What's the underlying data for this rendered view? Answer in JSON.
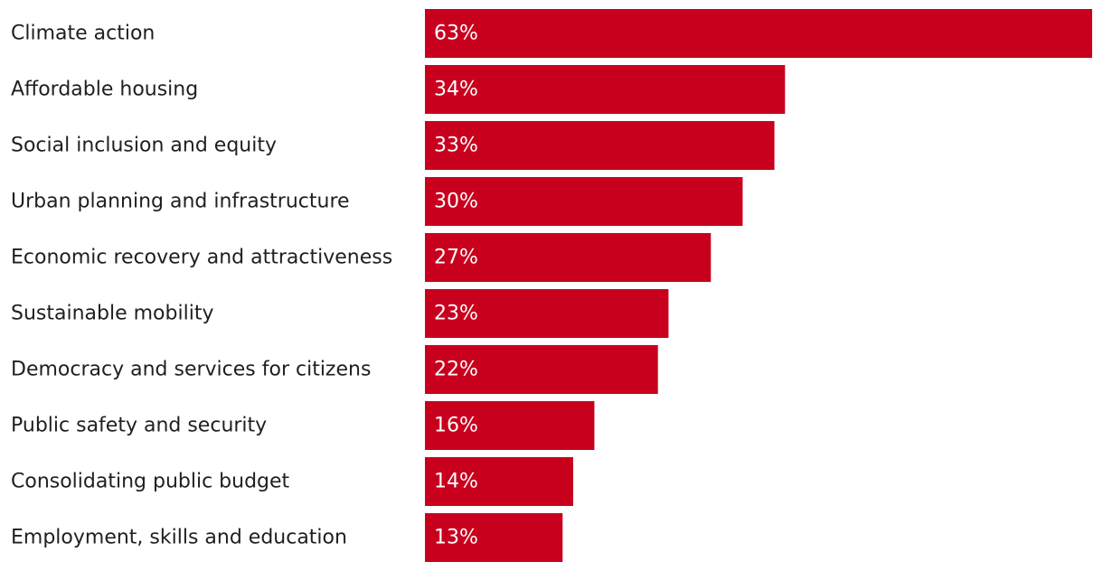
{
  "chart_data": {
    "type": "bar",
    "orientation": "horizontal",
    "title": "",
    "xlabel": "",
    "ylabel": "",
    "xlim": [
      0,
      63
    ],
    "grid": false,
    "legend": "none",
    "bar_color": "#c8001e",
    "label_color": "#1f1f1f",
    "value_label_color": "#ffffff",
    "categories": [
      "Climate action",
      "Affordable housing",
      "Social inclusion and equity",
      "Urban planning and infrastructure",
      "Economic recovery and attractiveness",
      "Sustainable mobility",
      "Democracy and services for citizens",
      "Public safety and security",
      "Consolidating public budget",
      "Employment, skills and education"
    ],
    "values": [
      63,
      34,
      33,
      30,
      27,
      23,
      22,
      16,
      14,
      13
    ],
    "value_labels": [
      "63%",
      "34%",
      "33%",
      "30%",
      "27%",
      "23%",
      "22%",
      "16%",
      "14%",
      "13%"
    ]
  }
}
